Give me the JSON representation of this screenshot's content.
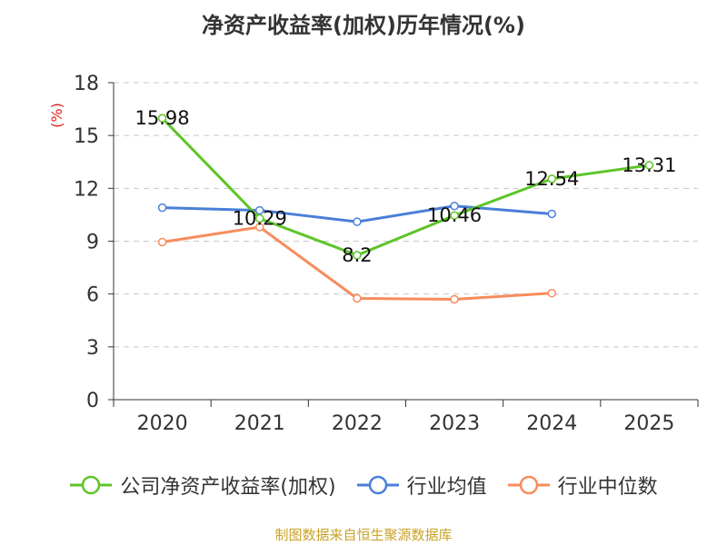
{
  "chart_data": {
    "type": "line",
    "title": "净资产收益率(加权)历年情况(%)",
    "ylabel": "(%)",
    "ylim": [
      0,
      18
    ],
    "yticks": [
      "0",
      "3",
      "6",
      "9",
      "12",
      "15",
      "18"
    ],
    "categories": [
      "2020",
      "2021",
      "2022",
      "2023",
      "2024",
      "2025"
    ],
    "series": [
      {
        "name": "公司净资产收益率(加权)",
        "color": "#5ec429",
        "values": [
          15.98,
          10.29,
          8.2,
          10.46,
          12.54,
          13.31
        ],
        "labels": [
          "15.98",
          "10.29",
          "8.2",
          "10.46",
          "12.54",
          "13.31"
        ]
      },
      {
        "name": "行业均值",
        "color": "#4a7fd8",
        "values": [
          10.9,
          10.75,
          10.1,
          11.0,
          10.55,
          null
        ]
      },
      {
        "name": "行业中位数",
        "color": "#f78c5c",
        "values": [
          8.95,
          9.8,
          5.75,
          5.7,
          6.05,
          null
        ]
      }
    ],
    "grid": true,
    "legend_position": "bottom"
  },
  "footer": {
    "source": "制图数据来自恒生聚源数据库"
  }
}
